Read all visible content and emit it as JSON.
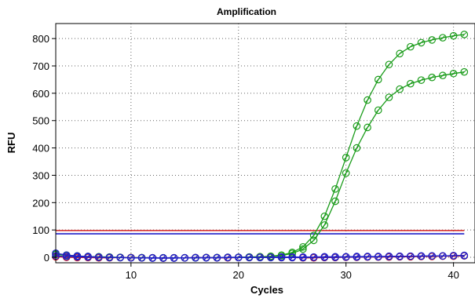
{
  "chart_data": {
    "type": "line",
    "title": "Amplification",
    "xlabel": "Cycles",
    "ylabel": "RFU",
    "xlim": [
      3,
      42
    ],
    "ylim": [
      -20,
      855
    ],
    "x_ticks": [
      10,
      20,
      30,
      40
    ],
    "y_ticks": [
      0,
      100,
      200,
      300,
      400,
      500,
      600,
      700,
      800
    ],
    "grid": true,
    "x": [
      3,
      4,
      5,
      6,
      7,
      8,
      9,
      10,
      11,
      12,
      13,
      14,
      15,
      16,
      17,
      18,
      19,
      20,
      21,
      22,
      23,
      24,
      25,
      26,
      27,
      28,
      29,
      30,
      31,
      32,
      33,
      34,
      35,
      36,
      37,
      38,
      39,
      40,
      41
    ],
    "series": [
      {
        "color": "#1a9c1a",
        "values": [
          12,
          8,
          5,
          3,
          2,
          1,
          0,
          -1,
          -1,
          -2,
          -2,
          -2,
          -2,
          -2,
          -1,
          -1,
          -1,
          0,
          1,
          2,
          4,
          8,
          18,
          38,
          80,
          150,
          250,
          365,
          480,
          575,
          650,
          705,
          745,
          770,
          785,
          795,
          803,
          810,
          815
        ]
      },
      {
        "color": "#1a9c1a",
        "values": [
          10,
          7,
          4,
          2,
          1,
          0,
          -1,
          -1,
          -2,
          -2,
          -2,
          -2,
          -2,
          -2,
          -1,
          -1,
          0,
          0,
          1,
          2,
          3,
          6,
          14,
          30,
          62,
          118,
          205,
          308,
          400,
          475,
          538,
          585,
          615,
          635,
          648,
          658,
          665,
          672,
          678
        ]
      },
      {
        "color": "#d42020",
        "values": [
          2,
          0,
          -1,
          -1,
          -2,
          -2,
          -1,
          -1,
          -2,
          -2,
          -3,
          -2,
          -2,
          -1,
          -1,
          -2,
          -2,
          -1,
          -1,
          0,
          0,
          -1,
          -1,
          -2,
          -2,
          -1,
          -1,
          0,
          0,
          1,
          1,
          1,
          2,
          2,
          3,
          3,
          4,
          4,
          5
        ]
      },
      {
        "color": "#2020c8",
        "values": [
          15,
          8,
          5,
          3,
          1,
          0,
          -1,
          -2,
          -2,
          -3,
          -3,
          -3,
          -2,
          -2,
          -2,
          -2,
          -1,
          -1,
          -1,
          -1,
          -1,
          -1,
          -1,
          -1,
          0,
          0,
          0,
          1,
          1,
          2,
          2,
          3,
          3,
          4,
          4,
          5,
          5,
          6,
          7
        ]
      },
      {
        "color": "#2020c8",
        "values": [
          5,
          3,
          2,
          1,
          0,
          -1,
          -1,
          -2,
          -2,
          -2,
          -2,
          -2,
          -2,
          -1,
          -1,
          -1,
          0,
          0,
          0,
          0,
          0,
          1,
          1,
          1,
          1,
          2,
          2,
          2,
          3,
          3,
          3,
          4,
          4,
          4,
          5,
          5,
          5,
          6,
          6
        ]
      }
    ],
    "threshold_lines": [
      {
        "color": "#d42020",
        "value": 98
      },
      {
        "color": "#2020c8",
        "value": 86
      }
    ]
  }
}
